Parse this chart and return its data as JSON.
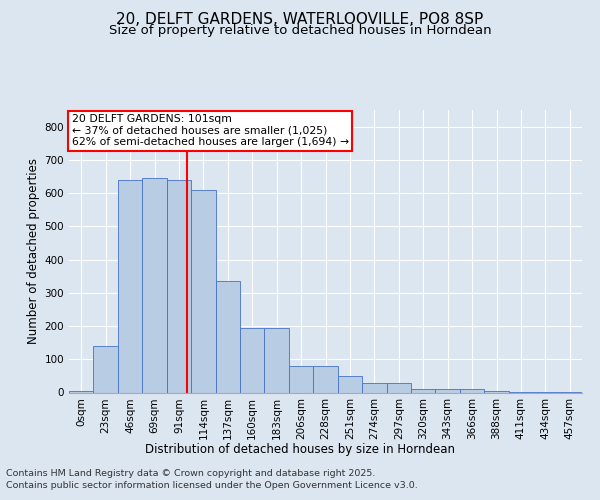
{
  "title": "20, DELFT GARDENS, WATERLOOVILLE, PO8 8SP",
  "subtitle": "Size of property relative to detached houses in Horndean",
  "xlabel": "Distribution of detached houses by size in Horndean",
  "ylabel": "Number of detached properties",
  "footer_line1": "Contains HM Land Registry data © Crown copyright and database right 2025.",
  "footer_line2": "Contains public sector information licensed under the Open Government Licence v3.0.",
  "bin_labels": [
    "0sqm",
    "23sqm",
    "46sqm",
    "69sqm",
    "91sqm",
    "114sqm",
    "137sqm",
    "160sqm",
    "183sqm",
    "206sqm",
    "228sqm",
    "251sqm",
    "274sqm",
    "297sqm",
    "320sqm",
    "343sqm",
    "366sqm",
    "388sqm",
    "411sqm",
    "434sqm",
    "457sqm"
  ],
  "bar_heights": [
    5,
    140,
    640,
    645,
    640,
    610,
    335,
    195,
    195,
    80,
    80,
    50,
    30,
    30,
    10,
    12,
    10,
    5,
    2,
    1,
    1
  ],
  "bar_color": "#b8cce4",
  "bar_edge_color": "#4472c4",
  "background_color": "#dce6f1",
  "plot_bg_color": "#dce6f1",
  "grid_color": "#ffffff",
  "vline_x_index": 4.35,
  "vline_color": "#ff0000",
  "annotation_box_text": "20 DELFT GARDENS: 101sqm\n← 37% of detached houses are smaller (1,025)\n62% of semi-detached houses are larger (1,694) →",
  "annotation_box_color": "#ff0000",
  "ylim": [
    0,
    850
  ],
  "yticks": [
    0,
    100,
    200,
    300,
    400,
    500,
    600,
    700,
    800
  ],
  "title_fontsize": 11,
  "subtitle_fontsize": 9.5,
  "axis_label_fontsize": 8.5,
  "tick_fontsize": 7.5,
  "footer_fontsize": 6.8,
  "annotation_fontsize": 7.8
}
